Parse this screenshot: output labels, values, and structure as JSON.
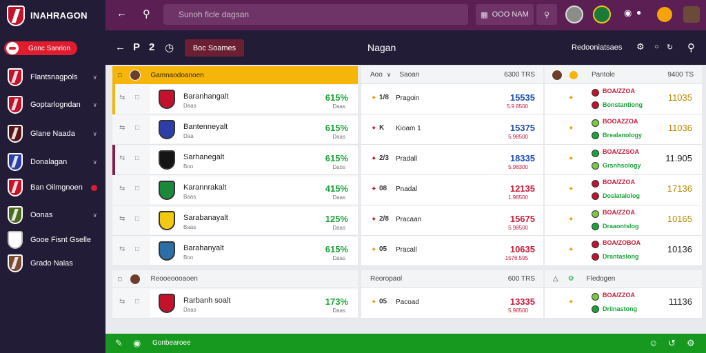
{
  "app": {
    "brand": "INAHRAGON"
  },
  "sidebar": {
    "promo_label": "Gonc Sanrion",
    "items": [
      {
        "label": "Flantsnagpols",
        "color": "#c4122a",
        "trailing": "chevron"
      },
      {
        "label": "Goptarlogndan",
        "color": "#c4122a",
        "trailing": "chevron"
      },
      {
        "label": "Glane Naada",
        "color": "#5a1416",
        "trailing": "chevron"
      },
      {
        "label": "Donalagan",
        "color": "#2c3ea8",
        "trailing": "chevron"
      },
      {
        "label": "Ban Oilmgnoen",
        "color": "#c4122a",
        "trailing": "dot"
      },
      {
        "label": "Oonas",
        "color": "#4a6b1c",
        "trailing": "chevron"
      },
      {
        "label": "Gooe Fisnt Gselle",
        "color": "#ffffff",
        "trailing": "none"
      },
      {
        "label": "Grado Nalas",
        "color": "#7a4a34",
        "trailing": "none"
      }
    ]
  },
  "topbar": {
    "search_placeholder": "Sunoh ficle dagsan",
    "filter_label": "OOO NAM",
    "back_icon": "arrow-left-icon",
    "search_icon": "search-icon"
  },
  "subbar": {
    "bets_label": "Boc Soames",
    "center_title": "Nagan",
    "right_label": "Redooniatsaes",
    "left_glyphs": [
      "P",
      "2"
    ]
  },
  "col1": {
    "header": "Gamnaodoanoen",
    "rows": [
      {
        "name": "Baranhangalt",
        "sub": "Daas",
        "pct": "615%",
        "pct_sub": "Daas",
        "crest": "#c4122a",
        "accent": "#f5b50a"
      },
      {
        "name": "Bantenneyalt",
        "sub": "Daa",
        "pct": "615%",
        "pct_sub": "Daas",
        "crest": "#2c3ea8",
        "accent": ""
      },
      {
        "name": "Sarhanegalt",
        "sub": "Boo",
        "pct": "615%",
        "pct_sub": "Daos",
        "crest": "#151515",
        "accent": "#8a1a4a"
      },
      {
        "name": "Karannrakalt",
        "sub": "Baas",
        "pct": "415%",
        "pct_sub": "Daas",
        "crest": "#1a8a3a",
        "accent": ""
      },
      {
        "name": "Sarabanayalt",
        "sub": "Baas",
        "pct": "125%",
        "pct_sub": "Daas",
        "crest": "#f2c811",
        "accent": ""
      },
      {
        "name": "Barahanyalt",
        "sub": "Boo",
        "pct": "615%",
        "pct_sub": "Daas",
        "crest": "#2c6ea8",
        "accent": ""
      }
    ],
    "section2_header": "Reooeoooaoen",
    "section2_rows": [
      {
        "name": "Rarbanh soalt",
        "sub": "Daas",
        "pct": "173%",
        "pct_sub": "Daas",
        "crest": "#c4122a",
        "accent": ""
      }
    ]
  },
  "col2": {
    "header_left": "Aoo",
    "header_mid": "Saoan",
    "header_right": "6300 TRS",
    "rows": [
      {
        "num": "1/8",
        "name": "Pragoin",
        "odds": "15535",
        "odds_sub": "5.9 8500",
        "odds_color": "#1f4fb0",
        "icon_color": "#e0a100"
      },
      {
        "num": "K",
        "name": "Kioam 1",
        "odds": "15375",
        "odds_sub": "5.98500",
        "odds_color": "#1f4fb0",
        "icon_color": "#c4122a"
      },
      {
        "num": "2/3",
        "name": "Pradall",
        "odds": "18335",
        "odds_sub": "5.98300",
        "odds_color": "#1f4fb0",
        "icon_color": "#c4122a"
      },
      {
        "num": "08",
        "name": "Pnadal",
        "odds": "12135",
        "odds_sub": "1.98500",
        "odds_color": "#c81c3a",
        "icon_color": "#c4122a"
      },
      {
        "num": "2/8",
        "name": "Pracaan",
        "odds": "15675",
        "odds_sub": "5.98500",
        "odds_color": "#c81c3a",
        "icon_color": "#c4122a"
      },
      {
        "num": "05",
        "name": "Pracall",
        "odds": "10635",
        "odds_sub": "1576.595",
        "odds_color": "#c81c3a",
        "icon_color": "#e0a100"
      }
    ],
    "section2_header": "Reoropaol",
    "section2_right": "600 TRS",
    "section2_rows": [
      {
        "num": "05",
        "name": "Pacoad",
        "odds": "13335",
        "odds_sub": "5.98500",
        "odds_color": "#c81c3a",
        "icon_color": "#e0a100"
      }
    ]
  },
  "col3": {
    "header_label": "Pantole",
    "header_right": "9400 TS",
    "rows": [
      {
        "line1": "BOA/ZZOA",
        "line2": "Bonstantiong",
        "val": "11035",
        "val_color": "#b88700",
        "dot1": "#c4122a",
        "dot2": "#c4122a"
      },
      {
        "line1": "BOOAZZOA",
        "line2": "Brealanology",
        "val": "11036",
        "val_color": "#b88700",
        "dot1": "#7ac943",
        "dot2": "#1aa33a"
      },
      {
        "line1": "BOA/ZZSOA",
        "line2": "Grsnhsology",
        "val": "11.905",
        "val_color": "#222222",
        "dot1": "#1aa33a",
        "dot2": "#7ac943"
      },
      {
        "line1": "BOA/ZZOA",
        "line2": "Doslatalolog",
        "val": "17136",
        "val_color": "#b88700",
        "dot1": "#c4122a",
        "dot2": "#c4122a"
      },
      {
        "line1": "BOA/ZZOA",
        "line2": "Draaontslog",
        "val": "10165",
        "val_color": "#b88700",
        "dot1": "#7ac943",
        "dot2": "#1aa33a"
      },
      {
        "line1": "BOA/ZOBOA",
        "line2": "Drantaslong",
        "val": "10136",
        "val_color": "#222222",
        "dot1": "#c4122a",
        "dot2": "#c4122a"
      }
    ],
    "section2_header": "Fledogen",
    "section2_rows": [
      {
        "line1": "BOA/ZZOA",
        "line2": "Driinastong",
        "val": "11136",
        "val_color": "#222222",
        "dot1": "#7ac943",
        "dot2": "#1aa33a"
      }
    ]
  },
  "footer": {
    "label": "Gonbearoee"
  }
}
